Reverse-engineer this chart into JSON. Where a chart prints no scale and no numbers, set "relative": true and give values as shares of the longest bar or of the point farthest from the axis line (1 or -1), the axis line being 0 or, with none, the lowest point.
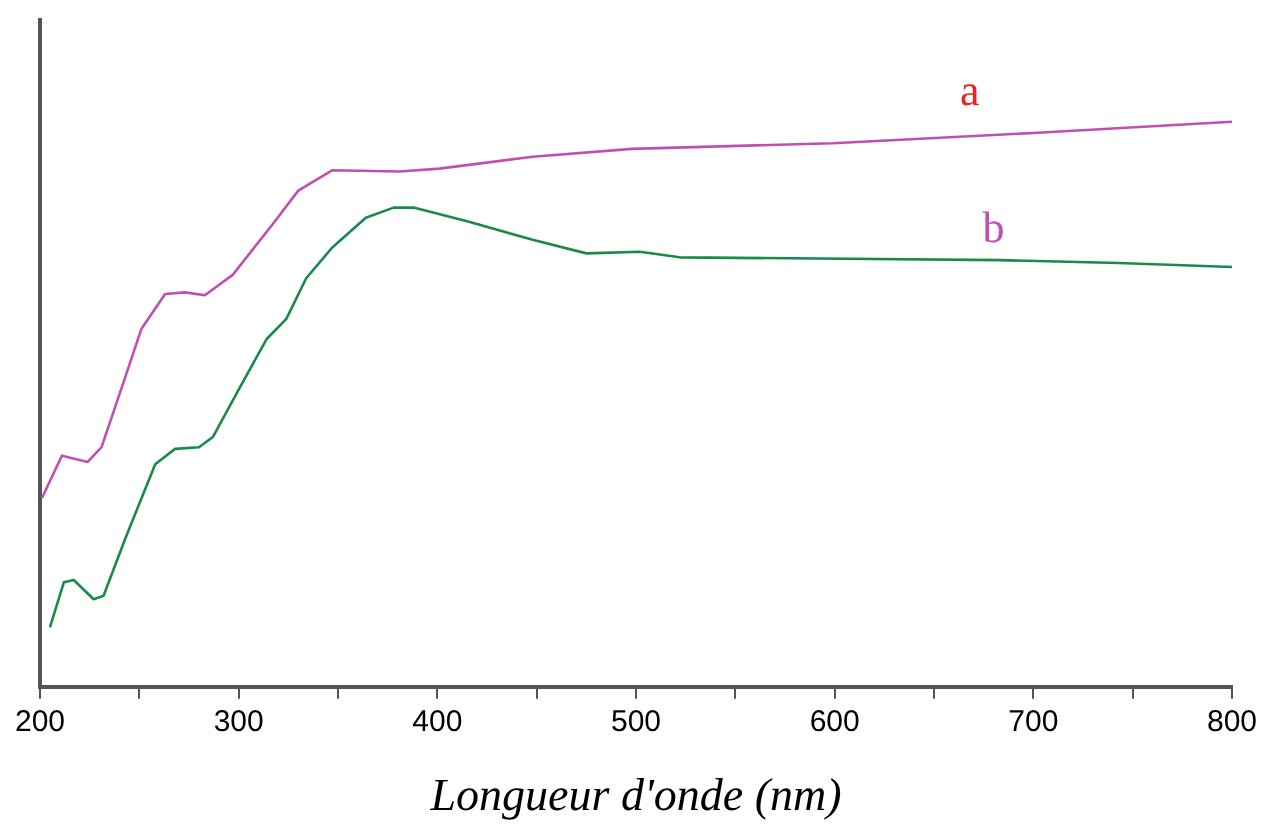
{
  "chart_data": {
    "type": "line",
    "relative": true,
    "xlabel": "Longueur d'onde (nm)",
    "xlim": [
      200,
      800
    ],
    "xticks": [
      200,
      {
        "value": 250,
        "label": null
      },
      300,
      {
        "value": 350,
        "label": null
      },
      400,
      {
        "value": 450,
        "label": null
      },
      500,
      {
        "value": 550,
        "label": null
      },
      600,
      {
        "value": 650,
        "label": null
      },
      700,
      {
        "value": 750,
        "label": null
      },
      800
    ],
    "grid": false,
    "legend": false,
    "marker": "none",
    "line_style": "solid",
    "series": [
      {
        "color": "#c050b0",
        "x": [
          201,
          211,
          224,
          231,
          243,
          251,
          263,
          273,
          283,
          297,
          317,
          330,
          347,
          381,
          401,
          448,
          498,
          599,
          700,
          800
        ],
        "values": [
          0.334,
          0.409,
          0.398,
          0.424,
          0.549,
          0.633,
          0.695,
          0.698,
          0.693,
          0.729,
          0.818,
          0.878,
          0.914,
          0.912,
          0.917,
          0.938,
          0.952,
          0.962,
          0.98,
          1.0
        ]
      },
      {
        "color": "#1a8a4a",
        "x": [
          205,
          212,
          217,
          227,
          232,
          243,
          258,
          268,
          280,
          287,
          300,
          314,
          324,
          334,
          347,
          364,
          378,
          388,
          415,
          448,
          475,
          502,
          522,
          683,
          743,
          800
        ],
        "values": [
          0.105,
          0.185,
          0.189,
          0.155,
          0.161,
          0.263,
          0.394,
          0.421,
          0.424,
          0.442,
          0.526,
          0.615,
          0.651,
          0.723,
          0.777,
          0.83,
          0.848,
          0.848,
          0.824,
          0.791,
          0.767,
          0.77,
          0.76,
          0.755,
          0.75,
          0.743
        ]
      }
    ],
    "annotations": [
      "a",
      "b"
    ]
  }
}
